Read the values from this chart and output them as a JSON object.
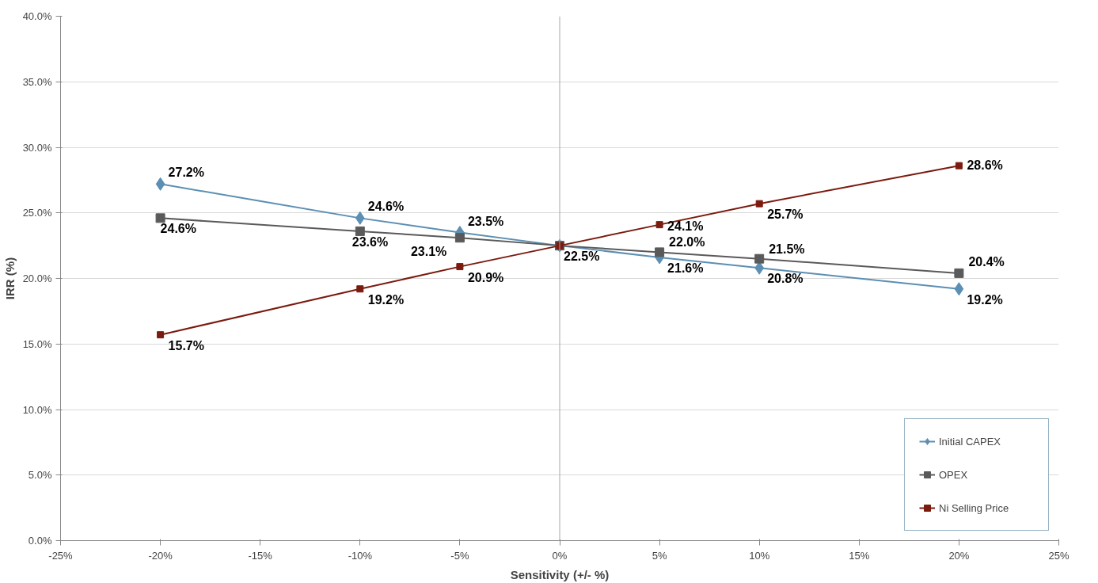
{
  "chart_data": {
    "type": "line",
    "xlabel": "Sensitivity (+/- %)",
    "ylabel": "IRR (%)",
    "x": [
      -20,
      -10,
      -5,
      0,
      5,
      10,
      20
    ],
    "series": [
      {
        "name": "Initial CAPEX",
        "color": "#5b8fb3",
        "marker": "diamond",
        "values": [
          27.2,
          24.6,
          23.5,
          22.5,
          21.6,
          20.8,
          19.2
        ],
        "value_labels": [
          "27.2%",
          "24.6%",
          "23.5%",
          "22.5%",
          "21.6%",
          "20.8%",
          "19.2%"
        ]
      },
      {
        "name": "OPEX",
        "color": "#5a5a5a",
        "marker": "square",
        "values": [
          24.6,
          23.6,
          23.1,
          22.5,
          22.0,
          21.5,
          20.4
        ],
        "value_labels": [
          "24.6%",
          "23.6%",
          "23.1%",
          null,
          "22.0%",
          "21.5%",
          "20.4%"
        ]
      },
      {
        "name": "Ni Selling Price",
        "color": "#7b1a0e",
        "marker": "square",
        "values": [
          15.7,
          19.2,
          20.9,
          22.5,
          24.1,
          25.7,
          28.6
        ],
        "value_labels": [
          "15.7%",
          "19.2%",
          "20.9%",
          null,
          "24.1%",
          "25.7%",
          "28.6%"
        ]
      }
    ],
    "xlim": [
      -25,
      25
    ],
    "xticks": [
      {
        "value": -25,
        "label": "-25%"
      },
      {
        "value": -20,
        "label": "-20%"
      },
      {
        "value": -15,
        "label": "-15%"
      },
      {
        "value": -10,
        "label": "-10%"
      },
      {
        "value": -5,
        "label": "-5%"
      },
      {
        "value": 0,
        "label": "0%"
      },
      {
        "value": 5,
        "label": "5%"
      },
      {
        "value": 10,
        "label": "10%"
      },
      {
        "value": 15,
        "label": "15%"
      },
      {
        "value": 20,
        "label": "20%"
      },
      {
        "value": 25,
        "label": "25%"
      }
    ],
    "ylim": [
      0,
      40
    ],
    "yticks": [
      {
        "value": 0,
        "label": "0.0%"
      },
      {
        "value": 5,
        "label": "5.0%"
      },
      {
        "value": 10,
        "label": "10.0%"
      },
      {
        "value": 15,
        "label": "15.0%"
      },
      {
        "value": 20,
        "label": "20.0%"
      },
      {
        "value": 25,
        "label": "25.0%"
      },
      {
        "value": 30,
        "label": "30.0%"
      },
      {
        "value": 35,
        "label": "35.0%"
      },
      {
        "value": 40,
        "label": "40.0%"
      }
    ],
    "ref_lines": [
      {
        "axis": "x",
        "value": 0,
        "color": "#a6a6a6"
      }
    ],
    "grid": "y",
    "legend": "bottom right",
    "line_style": "solid"
  }
}
